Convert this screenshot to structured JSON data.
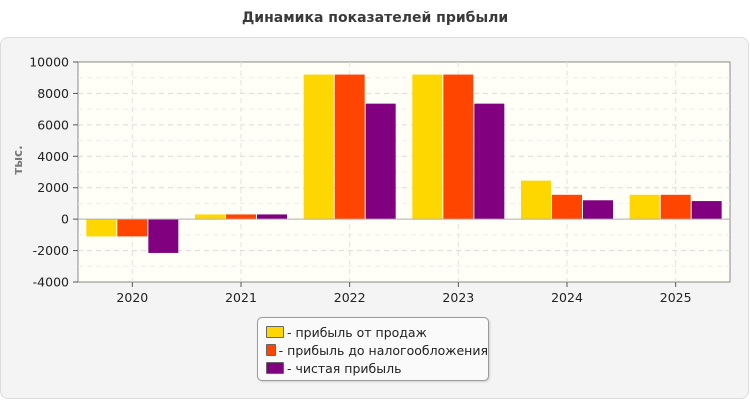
{
  "chart_data": {
    "type": "bar",
    "title": "Динамика показателей прибыли",
    "ylabel": "тыс.",
    "xlabel": "",
    "categories": [
      "2020",
      "2021",
      "2022",
      "2023",
      "2024",
      "2025"
    ],
    "ylim": [
      -4000,
      10000
    ],
    "yticks": [
      -4000,
      -2000,
      0,
      2000,
      4000,
      6000,
      8000,
      10000
    ],
    "grid": true,
    "legend_position": "bottom-center",
    "series": [
      {
        "name": "- прибыль от продаж",
        "color": "#ffd700",
        "values": [
          -1100,
          300,
          9200,
          9200,
          2450,
          1550
        ]
      },
      {
        "name": "- прибыль до налогообложения",
        "color": "#ff4500",
        "values": [
          -1100,
          300,
          9200,
          9200,
          1550,
          1550
        ]
      },
      {
        "name": "- чистая прибыль",
        "color": "#800080",
        "values": [
          -2150,
          300,
          7350,
          7350,
          1200,
          1150
        ]
      }
    ]
  }
}
